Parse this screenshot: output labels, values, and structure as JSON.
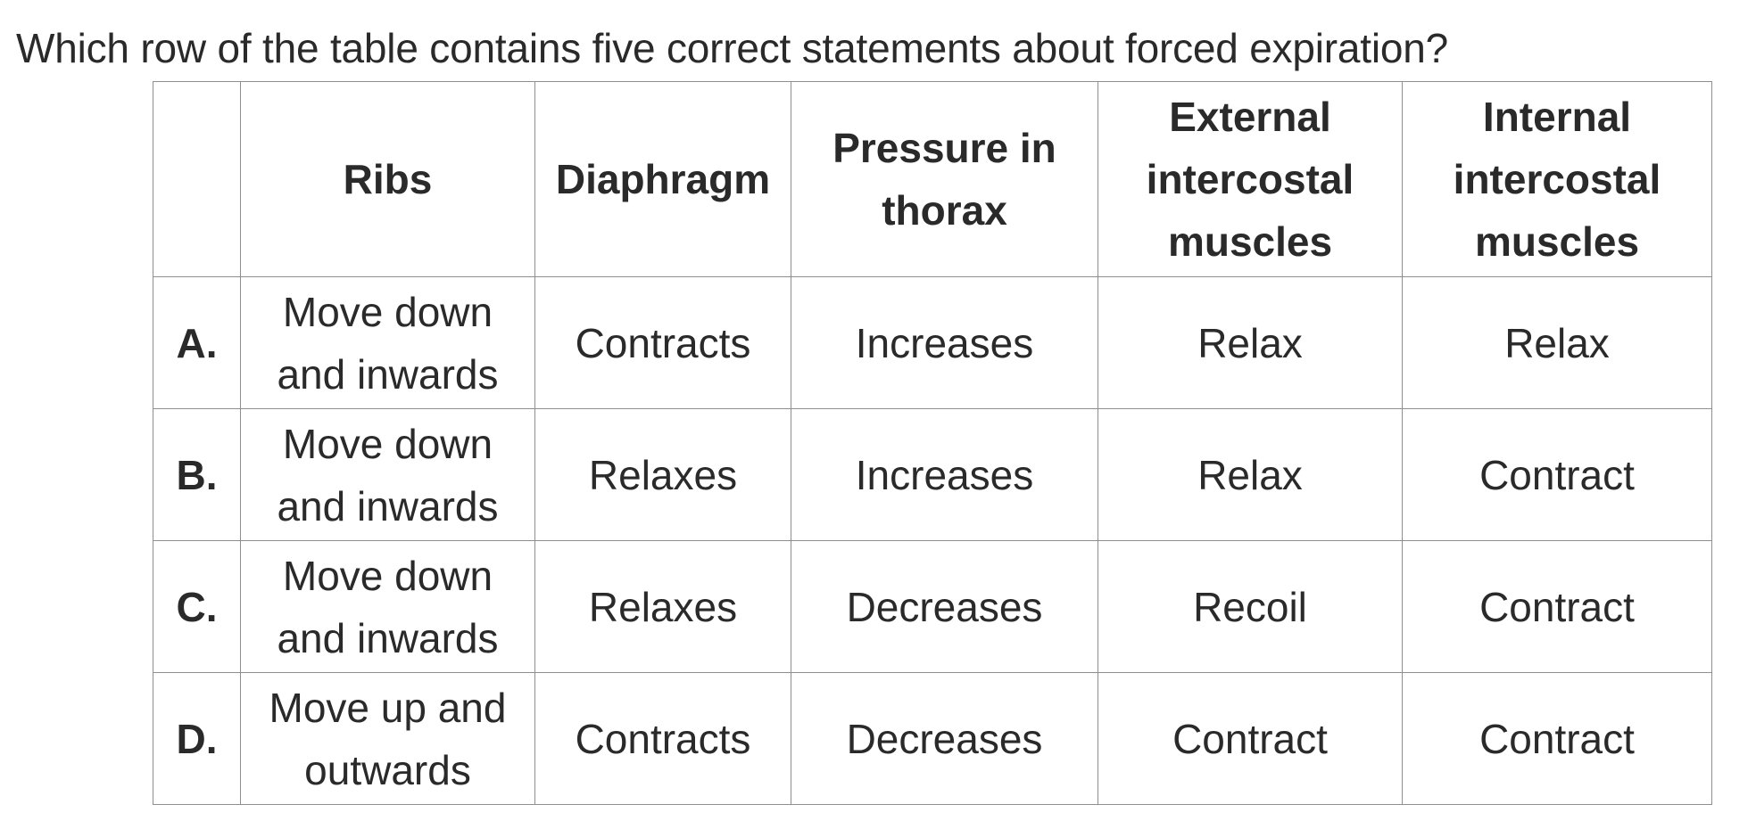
{
  "question": "Which row of the table contains five correct statements about forced expiration?",
  "table": {
    "headers": [
      "",
      "Ribs",
      "Diaphragm",
      "Pressure in thorax",
      "External intercostal muscles",
      "Internal intercostal muscles"
    ],
    "rows": [
      {
        "letter": "A.",
        "ribs": "Move down and inwards",
        "diaphragm": "Contracts",
        "pressure": "Increases",
        "external": "Relax",
        "internal": "Relax"
      },
      {
        "letter": "B.",
        "ribs": "Move down and inwards",
        "diaphragm": "Relaxes",
        "pressure": "Increases",
        "external": "Relax",
        "internal": "Contract"
      },
      {
        "letter": "C.",
        "ribs": "Move down and inwards",
        "diaphragm": "Relaxes",
        "pressure": "Decreases",
        "external": "Recoil",
        "internal": "Contract"
      },
      {
        "letter": "D.",
        "ribs": "Move up and outwards",
        "diaphragm": "Contracts",
        "pressure": "Decreases",
        "external": "Contract",
        "internal": "Contract"
      }
    ]
  },
  "colors": {
    "text": "#2a2a2a",
    "border": "#8f8f8f",
    "background": "#ffffff"
  }
}
